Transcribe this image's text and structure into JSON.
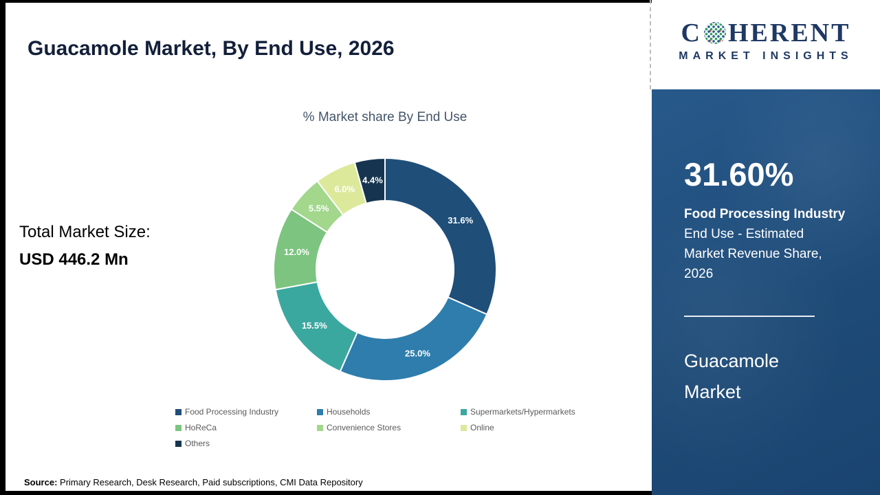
{
  "page": {
    "title": "Guacamole Market, By End Use, 2026",
    "source_label": "Source:",
    "source_text": " Primary Research, Desk Research, Paid subscriptions, CMI Data Repository"
  },
  "left": {
    "total_label": "Total Market Size:",
    "total_value": "USD 446.2 Mn"
  },
  "chart_data": {
    "type": "pie",
    "subtype": "donut",
    "title": "% Market share By End Use",
    "legend_position": "bottom",
    "total_percent": 100,
    "series": [
      {
        "name": "Food Processing Industry",
        "value": 31.6,
        "label": "31.6%",
        "color": "#1F4E79"
      },
      {
        "name": "Households",
        "value": 25.0,
        "label": "25.0%",
        "color": "#2E7DAD"
      },
      {
        "name": "Supermarkets/Hypermarkets",
        "value": 15.5,
        "label": "15.5%",
        "color": "#3BA8A0"
      },
      {
        "name": "HoReCa",
        "value": 12.0,
        "label": "12.0%",
        "color": "#7CC47F"
      },
      {
        "name": "Convenience Stores",
        "value": 5.5,
        "label": "5.5%",
        "color": "#A2D78C"
      },
      {
        "name": "Online",
        "value": 6.0,
        "label": "6.0%",
        "color": "#DCE99B"
      },
      {
        "name": "Others",
        "value": 4.4,
        "label": "4.4%",
        "color": "#16344F"
      }
    ]
  },
  "logo": {
    "text_c": "C",
    "text_rest": "HERENT",
    "subtitle": "MARKET INSIGHTS"
  },
  "panel": {
    "stat_value": "31.60%",
    "stat_bold": "Food Processing Industry",
    "stat_lines": [
      "End Use - Estimated",
      "Market Revenue Share,",
      "2026"
    ],
    "product_lines": [
      "Guacamole",
      "Market"
    ]
  },
  "colors": {
    "brand_navy": "#1F3864",
    "panel_blue": "#1F4E7C"
  }
}
